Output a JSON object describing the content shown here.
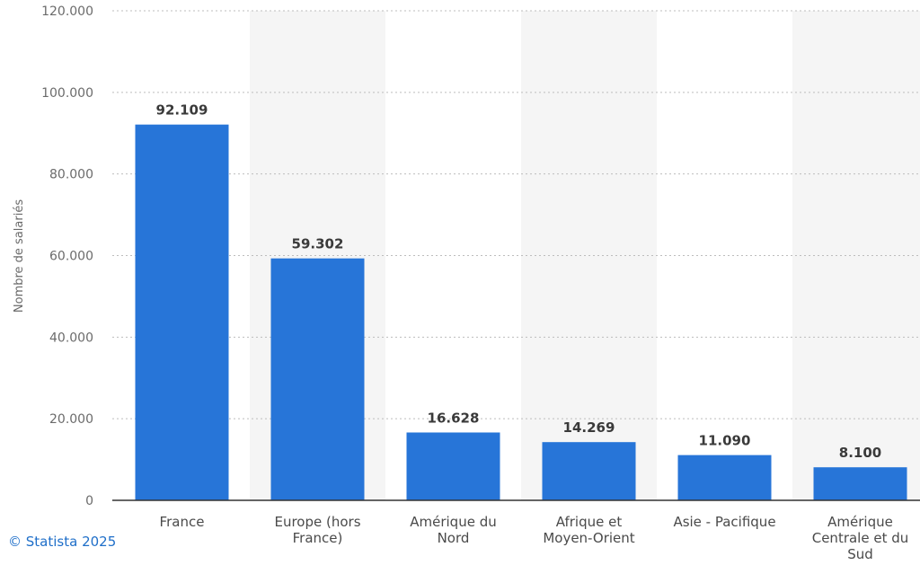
{
  "chart_data": {
    "type": "bar",
    "categories": [
      [
        "France"
      ],
      [
        "Europe (hors",
        "France)"
      ],
      [
        "Amérique du",
        "Nord"
      ],
      [
        "Afrique et",
        "Moyen-Orient"
      ],
      [
        "Asie - Pacifique"
      ],
      [
        "Amérique",
        "Centrale et du",
        "Sud"
      ]
    ],
    "values": [
      92109,
      59302,
      16628,
      14269,
      11090,
      8100
    ],
    "value_labels": [
      "92.109",
      "59.302",
      "16.628",
      "14.269",
      "11.090",
      "8.100"
    ],
    "ylabel": "Nombre de salariés",
    "xlabel": "",
    "ylim": [
      0,
      120000
    ],
    "yticks": [
      0,
      20000,
      40000,
      60000,
      80000,
      100000,
      120000
    ],
    "ytick_labels": [
      "0",
      "20.000",
      "40.000",
      "60.000",
      "80.000",
      "100.000",
      "120.000"
    ],
    "grid": true,
    "bar_color": "#2775d8",
    "band_color": "#f5f5f5"
  },
  "credit": "© Statista 2025"
}
